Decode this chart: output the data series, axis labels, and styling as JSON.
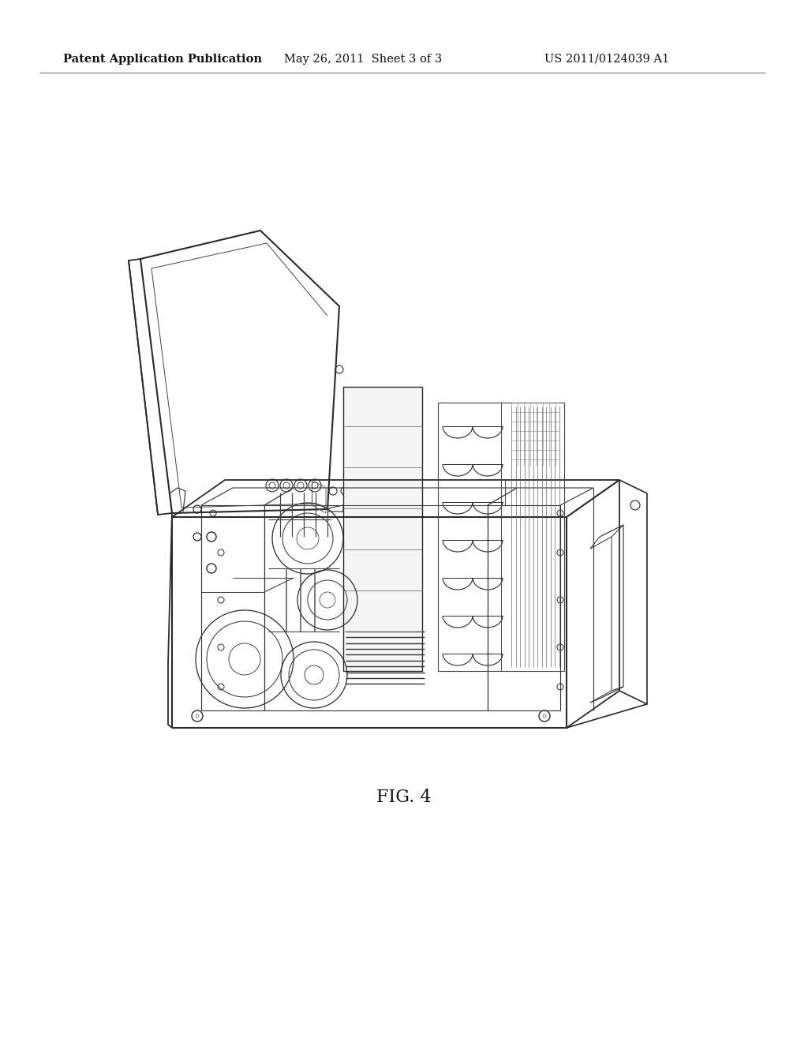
{
  "background_color": "#ffffff",
  "header_left": "Patent Application Publication",
  "header_center": "May 26, 2011  Sheet 3 of 3",
  "header_right": "US 2011/0124039 A1",
  "figure_label": "FIG. 4",
  "fig_label_fontsize": 16,
  "header_fontsize": 10.5,
  "line_color": "#2a2a2a",
  "line_width": 1.0
}
